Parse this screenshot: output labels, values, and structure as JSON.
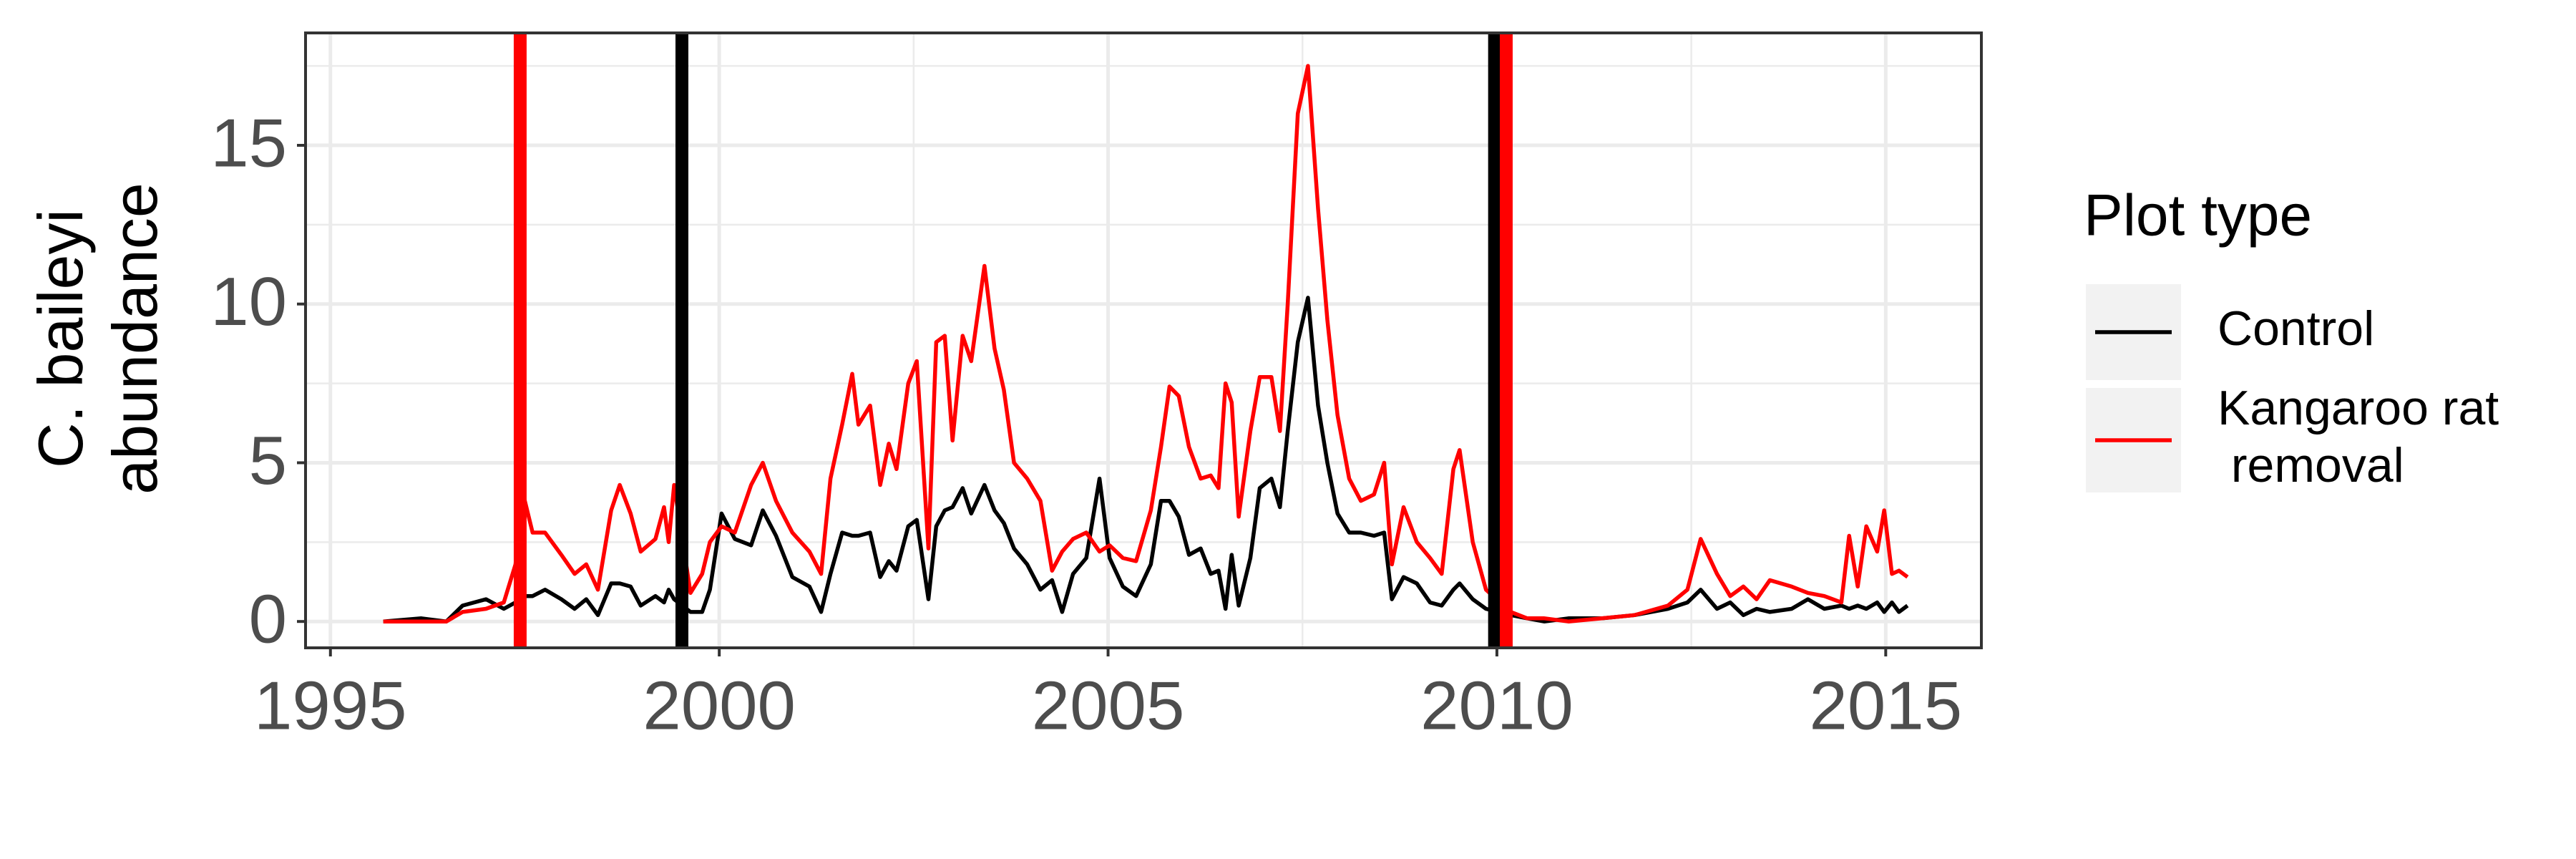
{
  "chart_data": {
    "type": "line",
    "ylabel": "C. baileyi\nabundance",
    "legend_title": "Plot type",
    "legend_position": "right",
    "grid": true,
    "xlim": [
      1994.68,
      2016.23
    ],
    "ylim": [
      -0.83,
      18.54
    ],
    "xticks": [
      1995,
      2000,
      2005,
      2010,
      2015
    ],
    "yticks": [
      0,
      5,
      10,
      15
    ],
    "minor_xticks": [
      1997.5,
      2002.5,
      2007.5,
      2012.5
    ],
    "minor_yticks": [
      2.5,
      7.5,
      12.5,
      17.5
    ],
    "vlines": [
      {
        "x": 1997.44,
        "color": "#ff0000"
      },
      {
        "x": 1999.52,
        "color": "#000000"
      },
      {
        "x": 2009.97,
        "color": "#000000"
      },
      {
        "x": 2010.12,
        "color": "#ff0000"
      }
    ],
    "x": [
      1995.68,
      1996.17,
      1996.49,
      1996.7,
      1997.0,
      1997.23,
      1997.38,
      1997.48,
      1997.6,
      1997.76,
      1997.97,
      1998.14,
      1998.29,
      1998.44,
      1998.61,
      1998.72,
      1998.86,
      1998.99,
      1999.18,
      1999.29,
      1999.35,
      1999.42,
      1999.63,
      1999.78,
      1999.88,
      2000.03,
      2000.2,
      2000.41,
      2000.56,
      2000.73,
      2000.94,
      2001.16,
      2001.31,
      2001.43,
      2001.58,
      2001.71,
      2001.79,
      2001.94,
      2002.07,
      2002.18,
      2002.28,
      2002.43,
      2002.54,
      2002.69,
      2002.79,
      2002.9,
      2003.0,
      2003.13,
      2003.24,
      2003.41,
      2003.54,
      2003.66,
      2003.79,
      2003.96,
      2004.13,
      2004.28,
      2004.41,
      2004.55,
      2004.72,
      2004.89,
      2005.02,
      2005.19,
      2005.36,
      2005.55,
      2005.68,
      2005.79,
      2005.91,
      2006.04,
      2006.19,
      2006.32,
      2006.42,
      2006.51,
      2006.59,
      2006.68,
      2006.83,
      2006.95,
      2007.1,
      2007.21,
      2007.31,
      2007.44,
      2007.57,
      2007.7,
      2007.82,
      2007.95,
      2008.1,
      2008.25,
      2008.42,
      2008.55,
      2008.65,
      2008.8,
      2008.97,
      2009.14,
      2009.29,
      2009.44,
      2009.52,
      2009.69,
      2009.86,
      2010.18,
      2010.39,
      2010.61,
      2010.92,
      2011.35,
      2011.77,
      2012.2,
      2012.45,
      2012.62,
      2012.83,
      2013.0,
      2013.17,
      2013.34,
      2013.51,
      2013.79,
      2014.0,
      2014.21,
      2014.43,
      2014.53,
      2014.64,
      2014.75,
      2014.89,
      2014.98,
      2015.08,
      2015.17,
      2015.28
    ],
    "series": [
      {
        "name": "Control",
        "color": "#000000",
        "values": [
          0,
          0.1,
          0,
          0.5,
          0.7,
          0.4,
          0.6,
          0.8,
          0.8,
          1.0,
          0.7,
          0.4,
          0.7,
          0.2,
          1.2,
          1.2,
          1.1,
          0.5,
          0.8,
          0.6,
          1.0,
          0.7,
          0.3,
          0.3,
          1.0,
          3.4,
          2.6,
          2.4,
          3.5,
          2.7,
          1.4,
          1.1,
          0.3,
          1.5,
          2.8,
          2.7,
          2.7,
          2.8,
          1.4,
          1.9,
          1.6,
          3.0,
          3.2,
          0.7,
          3.0,
          3.5,
          3.6,
          4.2,
          3.4,
          4.3,
          3.5,
          3.1,
          2.3,
          1.8,
          1.0,
          1.3,
          0.3,
          1.5,
          2.0,
          4.5,
          2.0,
          1.1,
          0.8,
          1.8,
          3.8,
          3.8,
          3.3,
          2.1,
          2.3,
          1.5,
          1.6,
          0.4,
          2.1,
          0.5,
          2.0,
          4.2,
          4.5,
          3.6,
          6.0,
          8.8,
          10.2,
          6.8,
          5.0,
          3.4,
          2.8,
          2.8,
          2.7,
          2.8,
          0.7,
          1.4,
          1.2,
          0.6,
          0.5,
          1.0,
          1.2,
          0.7,
          0.4,
          0.2,
          0.1,
          0.0,
          0.1,
          0.1,
          0.2,
          0.4,
          0.6,
          1.0,
          0.4,
          0.6,
          0.2,
          0.4,
          0.3,
          0.4,
          0.7,
          0.4,
          0.5,
          0.4,
          0.5,
          0.4,
          0.6,
          0.3,
          0.6,
          0.3,
          0.5
        ]
      },
      {
        "name": "Kangaroo rat\n removal",
        "color": "#ff0000",
        "values": [
          0,
          0,
          0,
          0.3,
          0.4,
          0.6,
          1.8,
          4.0,
          2.8,
          2.8,
          2.1,
          1.5,
          1.8,
          1.0,
          3.5,
          4.3,
          3.4,
          2.2,
          2.6,
          3.6,
          2.5,
          4.3,
          0.9,
          1.5,
          2.5,
          3.0,
          2.8,
          4.3,
          5.0,
          3.8,
          2.8,
          2.2,
          1.5,
          4.5,
          6.2,
          7.8,
          6.2,
          6.8,
          4.3,
          5.6,
          4.8,
          7.5,
          8.2,
          2.3,
          8.8,
          9.0,
          5.7,
          9.0,
          8.2,
          11.2,
          8.6,
          7.3,
          5.0,
          4.5,
          3.8,
          1.6,
          2.2,
          2.6,
          2.8,
          2.2,
          2.4,
          2.0,
          1.9,
          3.5,
          5.5,
          7.4,
          7.1,
          5.5,
          4.5,
          4.6,
          4.2,
          7.5,
          6.9,
          3.3,
          6.0,
          7.7,
          7.7,
          6.0,
          10.0,
          16.0,
          17.5,
          13.0,
          9.5,
          6.5,
          4.5,
          3.8,
          4.0,
          5.0,
          1.8,
          3.6,
          2.5,
          2.0,
          1.5,
          4.8,
          5.4,
          2.5,
          1.0,
          0.3,
          0.1,
          0.1,
          0.0,
          0.1,
          0.2,
          0.5,
          1.0,
          2.6,
          1.5,
          0.8,
          1.1,
          0.7,
          1.3,
          1.1,
          0.9,
          0.8,
          0.6,
          2.7,
          1.1,
          3.0,
          2.2,
          3.5,
          1.5,
          1.6,
          1.4
        ]
      }
    ]
  }
}
